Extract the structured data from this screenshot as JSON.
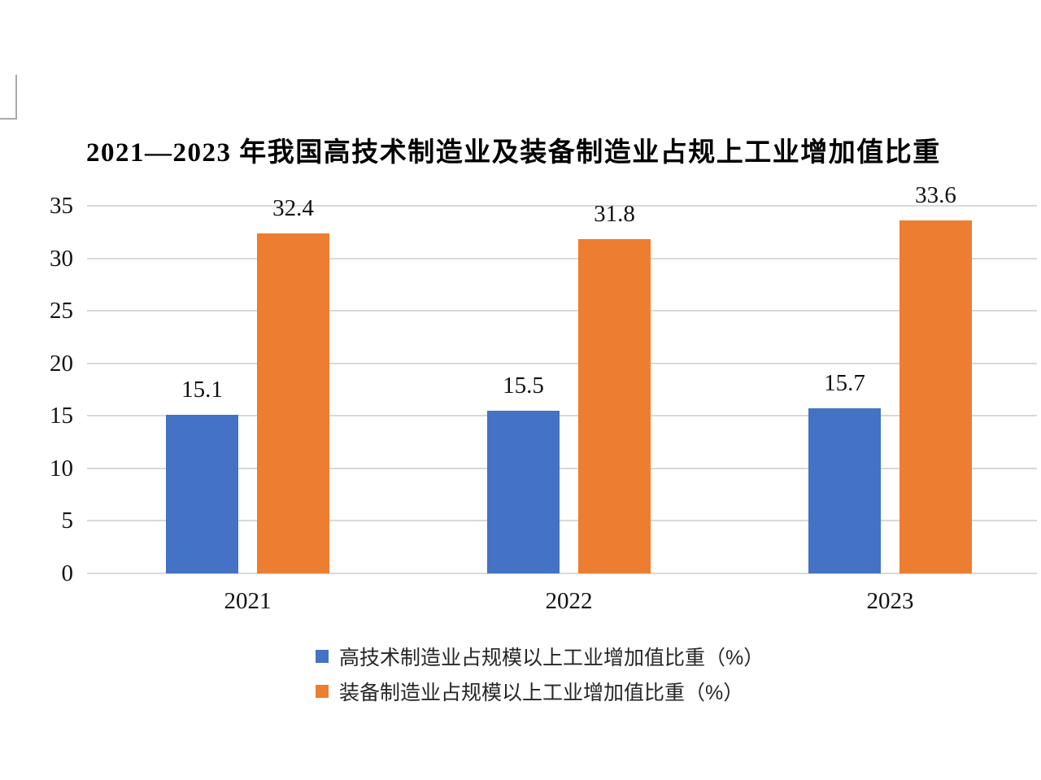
{
  "chart_data": {
    "type": "bar",
    "title": "2021—2023 年我国高技术制造业及装备制造业占规上工业增加值比重",
    "categories": [
      "2021",
      "2022",
      "2023"
    ],
    "series": [
      {
        "name": "高技术制造业占规模以上工业增加值比重（%）",
        "color": "#4472C4",
        "values": [
          15.1,
          15.5,
          15.7
        ]
      },
      {
        "name": "装备制造业占规模以上工业增加值比重（%）",
        "color": "#ED7D31",
        "values": [
          32.4,
          31.8,
          33.6
        ]
      }
    ],
    "ylim": [
      0,
      35
    ],
    "yticks": [
      0,
      5,
      10,
      15,
      20,
      25,
      30,
      35
    ],
    "grid": true,
    "gridline_color": "#d9d9d9",
    "data_labels": true,
    "legend_position": "bottom",
    "text_color": "#111111"
  }
}
